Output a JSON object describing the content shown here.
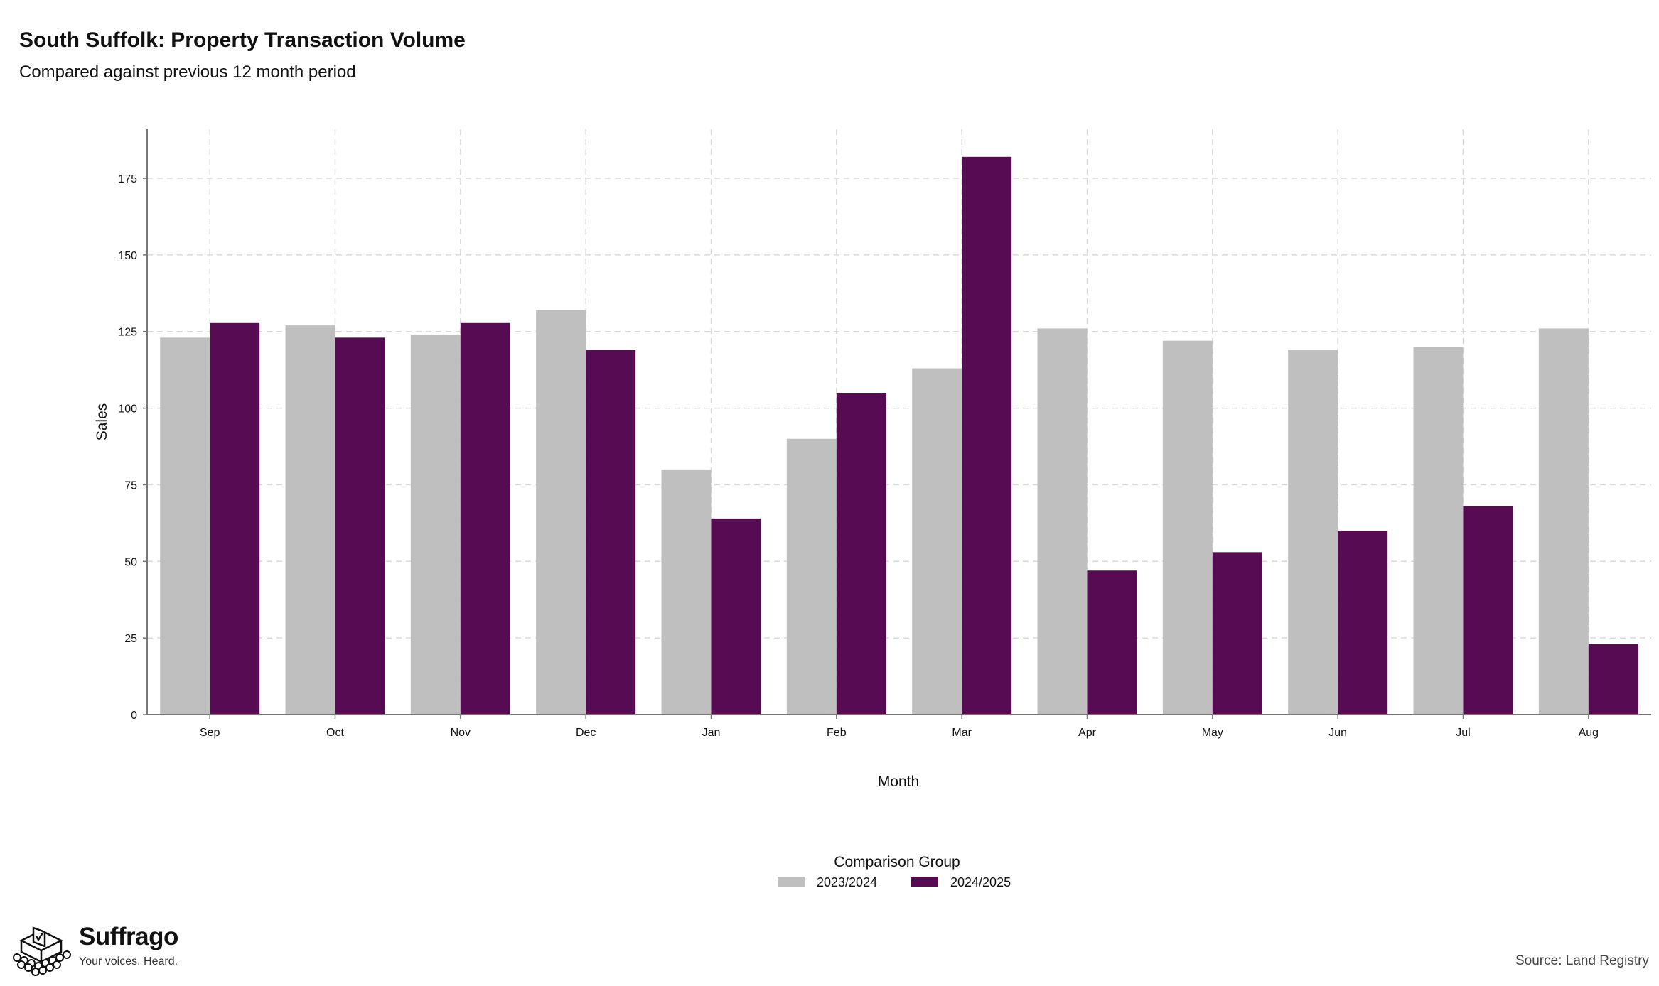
{
  "header": {
    "title": "South Suffolk: Property Transaction Volume",
    "subtitle": "Compared against previous 12 month period"
  },
  "footer": {
    "brand_name": "Suffrago",
    "brand_tagline": "Your voices. Heard.",
    "source": "Source: Land Registry"
  },
  "colors": {
    "series_2023_2024": "#bfbfbf",
    "series_2024_2025": "#560b52",
    "grid": "#d9d9d9",
    "axis": "#777777"
  },
  "chart_data": {
    "type": "bar",
    "title": "South Suffolk: Property Transaction Volume",
    "subtitle": "Compared against previous 12 month period",
    "xlabel": "Month",
    "ylabel": "Sales",
    "categories": [
      "Sep",
      "Oct",
      "Nov",
      "Dec",
      "Jan",
      "Feb",
      "Mar",
      "Apr",
      "May",
      "Jun",
      "Jul",
      "Aug"
    ],
    "series": [
      {
        "name": "2023/2024",
        "values": [
          123,
          127,
          124,
          132,
          80,
          90,
          113,
          126,
          122,
          119,
          120,
          126
        ]
      },
      {
        "name": "2024/2025",
        "values": [
          128,
          123,
          128,
          119,
          64,
          105,
          182,
          47,
          53,
          60,
          68,
          23
        ]
      }
    ],
    "ylim": [
      0,
      191
    ],
    "yticks": [
      0,
      25,
      50,
      75,
      100,
      125,
      150,
      175
    ],
    "grid": true,
    "legend_title": "Comparison Group",
    "legend_position": "bottom"
  }
}
